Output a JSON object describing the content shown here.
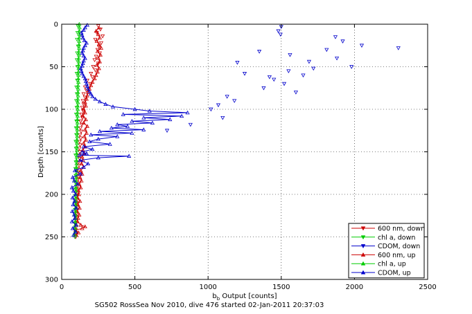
{
  "caption": "SG502 RossSea Nov 2010, dive 476 started 02-Jan-2011 20:37:03",
  "chart_data": {
    "type": "line",
    "xlabel_main": "b",
    "xlabel_sub": "b",
    "xlabel_rest": " Output [counts]",
    "ylabel": "Depth [counts]",
    "xlim": [
      0,
      2500
    ],
    "ylim": [
      0,
      300
    ],
    "y_reversed": true,
    "grid": true,
    "x_ticks": [
      0,
      500,
      1000,
      1500,
      2000,
      2500
    ],
    "x_tick_labels": [
      "0",
      "500",
      "1000",
      "1500",
      "2000",
      "2500"
    ],
    "y_ticks": [
      0,
      50,
      100,
      150,
      200,
      250,
      300
    ],
    "y_tick_labels": [
      "0",
      "50",
      "100",
      "150",
      "200",
      "250",
      "300"
    ],
    "legend_position": "lower-right",
    "series": [
      {
        "name": "600 nm, down",
        "color": "#cc0000",
        "marker": "triangle-down",
        "line": false,
        "y": [
          2,
          6,
          10,
          14,
          18,
          22,
          26,
          30,
          34,
          38,
          42,
          46,
          50,
          54,
          58,
          62,
          66,
          70,
          74,
          78,
          82,
          86,
          90,
          94,
          98,
          102,
          106,
          110,
          114,
          118,
          122,
          126,
          130,
          134,
          138,
          142,
          146,
          150,
          154,
          158,
          162,
          166,
          170,
          174,
          178,
          182,
          186,
          190,
          194,
          198,
          202,
          206,
          210,
          214,
          218,
          222,
          226,
          230,
          234,
          238,
          242,
          246,
          250
        ],
        "x": [
          250,
          265,
          240,
          280,
          230,
          270,
          255,
          245,
          260,
          235,
          225,
          250,
          215,
          230,
          200,
          210,
          175,
          195,
          160,
          170,
          150,
          160,
          145,
          150,
          140,
          148,
          135,
          142,
          130,
          138,
          128,
          133,
          125,
          130,
          122,
          126,
          120,
          124,
          118,
          122,
          116,
          118,
          110,
          114,
          108,
          112,
          106,
          110,
          104,
          108,
          102,
          106,
          100,
          104,
          100,
          102,
          98,
          100,
          98,
          100,
          96,
          98,
          96
        ]
      },
      {
        "name": "chl a, down",
        "color": "#00cc00",
        "marker": "triangle-down",
        "line": false,
        "y": [
          2,
          10,
          18,
          26,
          34,
          42,
          50,
          58,
          66,
          74,
          82,
          90,
          98,
          106,
          114,
          122,
          130,
          138,
          146,
          154,
          162,
          170,
          178,
          186,
          194,
          202,
          210,
          218,
          226,
          234,
          242,
          250
        ],
        "x": [
          110,
          108,
          105,
          112,
          106,
          104,
          108,
          103,
          106,
          101,
          104,
          100,
          103,
          99,
          101,
          98,
          100,
          96,
          98,
          95,
          97,
          94,
          96,
          93,
          95,
          92,
          94,
          91,
          93,
          90,
          92,
          90
        ]
      },
      {
        "name": "CDOM, down",
        "color": "#0000cc",
        "marker": "triangle-down",
        "line": false,
        "y": [
          3,
          8,
          25,
          45,
          32,
          55,
          60,
          70,
          75,
          80,
          85,
          40,
          20,
          15,
          65,
          50,
          28,
          95,
          100,
          110,
          118,
          125,
          90,
          62,
          52,
          58,
          12,
          30,
          44,
          36
        ],
        "x": [
          1500,
          1480,
          2050,
          1200,
          1350,
          1550,
          1650,
          1520,
          1380,
          1600,
          1130,
          1880,
          1920,
          1870,
          1450,
          1980,
          2300,
          1070,
          1020,
          1100,
          880,
          720,
          1180,
          1420,
          1720,
          1250,
          1495,
          1810,
          1690,
          1560
        ]
      },
      {
        "name": "600 nm, up",
        "color": "#cc0000",
        "marker": "triangle-up",
        "line": true,
        "y": [
          248,
          245,
          242,
          240,
          238,
          236,
          232,
          228,
          224,
          220,
          216,
          212,
          208,
          204,
          200,
          196,
          192,
          188,
          184,
          180,
          176,
          172,
          168,
          164,
          160,
          156,
          152,
          148,
          144,
          140,
          136,
          132,
          128,
          124,
          120,
          116,
          112,
          108,
          104,
          100,
          96,
          92,
          88,
          84,
          80,
          76,
          72,
          68,
          64,
          60,
          56,
          52,
          48,
          44,
          40,
          36,
          32,
          28,
          24,
          20,
          16,
          12,
          8,
          4
        ],
        "x": [
          100,
          115,
          95,
          140,
          160,
          130,
          108,
          112,
          120,
          105,
          122,
          110,
          125,
          108,
          118,
          115,
          130,
          120,
          135,
          125,
          140,
          130,
          150,
          135,
          145,
          140,
          155,
          145,
          160,
          150,
          165,
          155,
          170,
          160,
          175,
          150,
          165,
          145,
          160,
          150,
          165,
          160,
          170,
          175,
          180,
          190,
          200,
          210,
          225,
          235,
          245,
          255,
          240,
          260,
          250,
          265,
          245,
          270,
          255,
          240,
          260,
          250,
          235,
          255
        ]
      },
      {
        "name": "chl a, up",
        "color": "#00cc00",
        "marker": "triangle-up",
        "line": true,
        "y": [
          248,
          244,
          240,
          236,
          232,
          228,
          224,
          220,
          216,
          212,
          208,
          204,
          200,
          196,
          192,
          188,
          184,
          180,
          176,
          172,
          168,
          164,
          160,
          156,
          152,
          148,
          144,
          140,
          136,
          132,
          128,
          124,
          120,
          116,
          112,
          108,
          104,
          100,
          96,
          92,
          88,
          84,
          80,
          76,
          72,
          68,
          64,
          60,
          56,
          52,
          48,
          44,
          40,
          36,
          32,
          28,
          24,
          20,
          16,
          12,
          8,
          4,
          0
        ],
        "x": [
          90,
          92,
          91,
          93,
          92,
          94,
          93,
          95,
          94,
          96,
          95,
          97,
          96,
          98,
          97,
          99,
          98,
          100,
          99,
          101,
          100,
          102,
          101,
          103,
          102,
          104,
          103,
          105,
          104,
          106,
          105,
          107,
          106,
          108,
          107,
          109,
          108,
          110,
          109,
          111,
          110,
          112,
          111,
          113,
          112,
          114,
          113,
          115,
          114,
          116,
          115,
          117,
          116,
          118,
          117,
          119,
          118,
          120,
          119,
          121,
          120,
          122,
          120
        ]
      },
      {
        "name": "CDOM, up",
        "color": "#0000cc",
        "marker": "triangle-up",
        "line": true,
        "y": [
          248,
          244,
          240,
          236,
          232,
          228,
          224,
          220,
          216,
          212,
          208,
          204,
          200,
          196,
          192,
          188,
          184,
          180,
          176,
          172,
          168,
          164,
          160,
          157,
          155,
          154,
          152,
          150,
          147,
          144,
          141,
          138,
          135,
          132,
          130,
          128,
          126,
          124,
          122,
          120,
          118,
          116,
          114,
          112,
          110,
          108,
          106,
          104,
          102,
          100,
          97,
          94,
          91,
          88,
          85,
          82,
          79,
          76,
          73,
          70,
          67,
          64,
          61,
          58,
          55,
          52,
          49,
          46,
          43,
          40,
          37,
          34,
          31,
          28,
          25,
          22,
          19,
          16,
          13,
          10,
          7,
          4,
          1
        ],
        "x": [
          80,
          95,
          75,
          100,
          70,
          90,
          85,
          72,
          100,
          78,
          88,
          74,
          95,
          80,
          70,
          110,
          85,
          75,
          130,
          90,
          150,
          180,
          125,
          250,
          460,
          120,
          170,
          140,
          210,
          150,
          330,
          190,
          250,
          380,
          200,
          480,
          260,
          560,
          340,
          450,
          380,
          620,
          480,
          740,
          560,
          820,
          420,
          860,
          600,
          500,
          350,
          300,
          260,
          230,
          210,
          200,
          190,
          180,
          175,
          170,
          165,
          160,
          150,
          140,
          135,
          130,
          140,
          145,
          150,
          160,
          150,
          140,
          145,
          150,
          160,
          170,
          155,
          145,
          140,
          135,
          150,
          160,
          175
        ]
      }
    ]
  }
}
